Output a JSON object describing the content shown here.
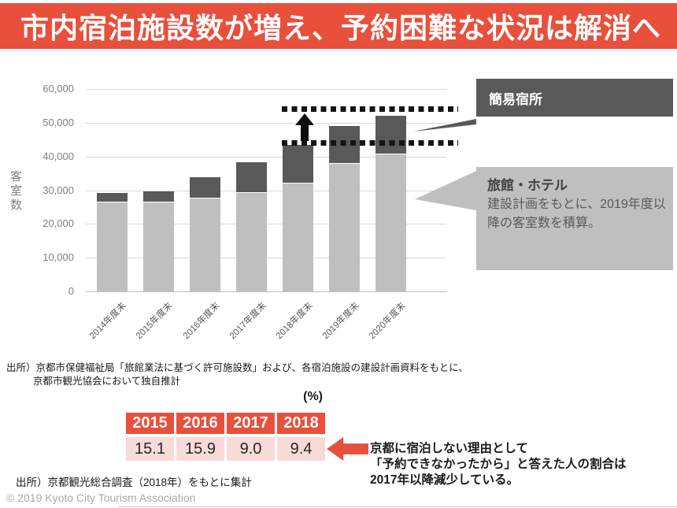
{
  "header": {
    "title": "市内宿泊施設数が増え、予約困難な状況は解消へ"
  },
  "chart_data": {
    "type": "bar",
    "stacked": true,
    "ylabel": "客室数",
    "ylim": [
      0,
      60000
    ],
    "yticks": [
      "0",
      "10,000",
      "20,000",
      "30,000",
      "40,000",
      "50,000",
      "60,000"
    ],
    "categories": [
      "2014年度末",
      "2015年度末",
      "2016年度末",
      "2017年度末",
      "2018年度末",
      "2019年度末",
      "2020年度末"
    ],
    "series": [
      {
        "name": "旅館・ホテル",
        "color": "#bfbfbf",
        "values": [
          26300,
          26300,
          27500,
          29100,
          31900,
          37800,
          40700
        ]
      },
      {
        "name": "簡易宿所",
        "color": "#595959",
        "values": [
          2900,
          3300,
          6400,
          9100,
          11600,
          11200,
          11400
        ]
      }
    ],
    "annotations": {
      "dotted_upper_value": 54000,
      "dotted_lower_value": 44100
    },
    "grid": "horizontal",
    "legend_position": "right-callouts"
  },
  "callouts": {
    "simple_lodging": {
      "label": "簡易宿所"
    },
    "ryokan_hotel": {
      "title": "旅館・ホテル",
      "body": "建設計画をもとに、2019年度以降の客室数を積算。"
    }
  },
  "source_top": {
    "line1": "出所）京都市保健福祉局「旅館業法に基づく許可施設数」および、各宿泊施設の建設計画資料をもとに、",
    "line2": "京都市観光協会において独自推計"
  },
  "ratio_table": {
    "unit_label": "(%)",
    "headers": [
      "2015",
      "2016",
      "2017",
      "2018"
    ],
    "values": [
      "15.1",
      "15.9",
      "9.0",
      "9.4"
    ]
  },
  "note": {
    "line1": "京都に宿泊しない理由として",
    "line2": "「予約できなかったから」と答えた人の割合は",
    "line3": "2017年以降減少している。"
  },
  "source_bottom": "出所）京都観光総合調査（2018年）をもとに集計",
  "footer": "© 2019 Kyoto City Tourism Association",
  "colors": {
    "accent": "#e8503c",
    "bar_light": "#bfbfbf",
    "bar_dark": "#595959",
    "table_pink": "#f8dad7"
  }
}
